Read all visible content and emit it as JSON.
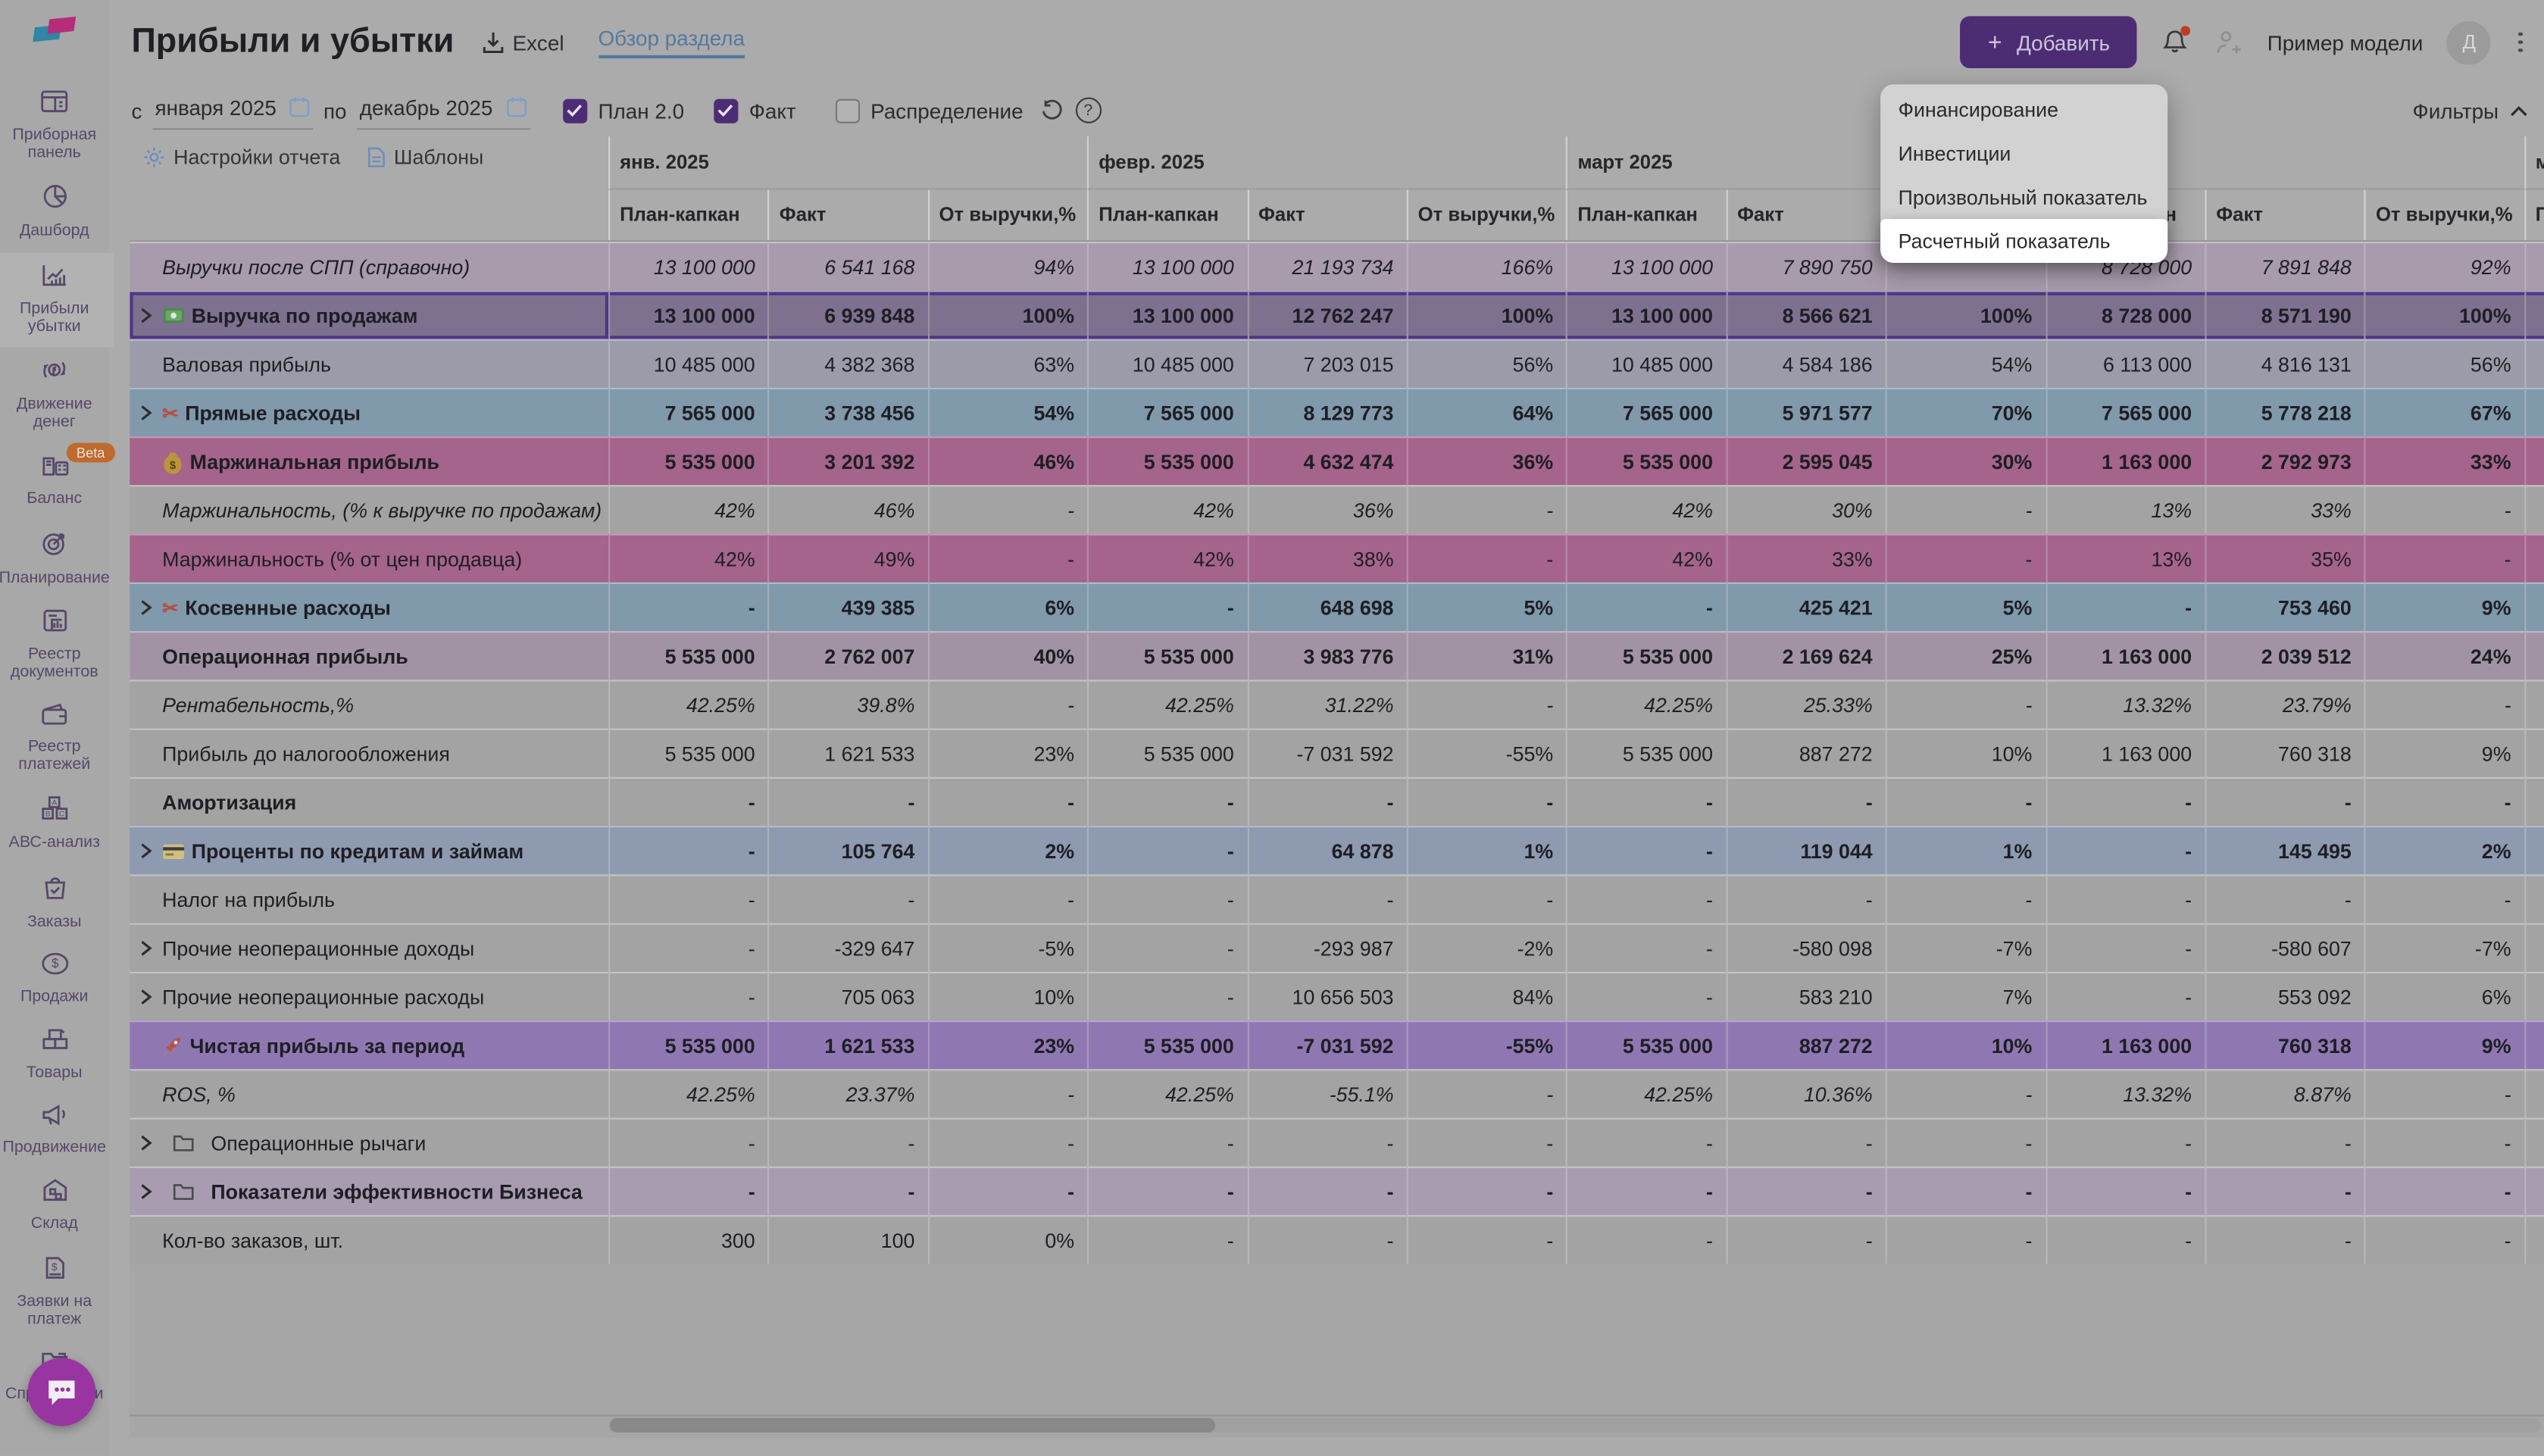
{
  "app": {
    "page_title": "Прибыли и убытки",
    "excel_export": "Excel",
    "section_overview_link": "Обзор раздела",
    "add_button": "Добавить",
    "model_name": "Пример модели",
    "avatar_letter": "Д"
  },
  "filters": {
    "from_label": "с",
    "from_value": "января 2025",
    "to_label": "по",
    "to_value": "декабрь 2025",
    "plan_checkbox": {
      "label": "План 2.0",
      "checked": true
    },
    "fact_checkbox": {
      "label": "Факт",
      "checked": true
    },
    "distribution_checkbox": {
      "label": "Распределение",
      "checked": false
    },
    "filters_toggle": "Фильтры"
  },
  "toolbar": {
    "report_settings": "Настройки отчета",
    "templates": "Шаблоны"
  },
  "sidebar": {
    "items": [
      {
        "label": "Приборная панель",
        "icon": "dashboard-panel",
        "active": false
      },
      {
        "label": "Дашборд",
        "icon": "pie-dashboard",
        "active": false
      },
      {
        "label": "Прибыли убытки",
        "icon": "profit-chart",
        "active": true
      },
      {
        "label": "Движение денег",
        "icon": "money-flow",
        "active": false
      },
      {
        "label": "Баланс",
        "icon": "balance",
        "active": false,
        "badge": "Beta"
      },
      {
        "label": "Планирование",
        "icon": "planning-target",
        "active": false
      },
      {
        "label": "Реестр документов",
        "icon": "documents-registry",
        "active": false
      },
      {
        "label": "Реестр платежей",
        "icon": "payments-registry",
        "active": false
      },
      {
        "label": "АВС-анализ",
        "icon": "abc-analysis",
        "active": false
      },
      {
        "label": "Заказы",
        "icon": "orders-bag",
        "active": false
      },
      {
        "label": "Продажи",
        "icon": "sales-dollar",
        "active": false
      },
      {
        "label": "Товары",
        "icon": "goods-boxes",
        "active": false
      },
      {
        "label": "Продвижение",
        "icon": "promotion-megaphone",
        "active": false
      },
      {
        "label": "Склад",
        "icon": "warehouse",
        "active": false
      },
      {
        "label": "Заявки на платеж",
        "icon": "payment-request",
        "active": false
      },
      {
        "label": "Справочники",
        "icon": "references-folder",
        "active": false
      }
    ]
  },
  "add_menu": {
    "items": [
      "Финансирование",
      "Инвестиции",
      "Произвольный показатель",
      "Расчетный показатель"
    ],
    "highlighted_index": 3
  },
  "table": {
    "months": [
      "янв. 2025",
      "февр. 2025",
      "март 2025",
      ""
    ],
    "value_columns": [
      "План-капкан",
      "Факт",
      "От выручки,%"
    ],
    "partial_next_month": {
      "month_label": "ма",
      "column_label": "Пл"
    },
    "rows": [
      {
        "label": "Выручки после СПП (справочно)",
        "icon": null,
        "chevron": false,
        "style": "ref",
        "italic": true,
        "bold": false,
        "selected": false,
        "cells": [
          "13 100 000",
          "6 541 168",
          "94%",
          "13 100 000",
          "21 193 734",
          "166%",
          "13 100 000",
          "7 890 750",
          "",
          "8 728 000",
          "7 891 848",
          "92%"
        ]
      },
      {
        "label": "Выручка по продажам",
        "icon": "banknote",
        "chevron": true,
        "style": "sel",
        "italic": false,
        "bold": true,
        "selected": true,
        "cells": [
          "13 100 000",
          "6 939 848",
          "100%",
          "13 100 000",
          "12 762 247",
          "100%",
          "13 100 000",
          "8 566 621",
          "100%",
          "8 728 000",
          "8 571 190",
          "100%"
        ]
      },
      {
        "label": "Валовая прибыль",
        "icon": null,
        "chevron": false,
        "style": "gross",
        "italic": false,
        "bold": false,
        "selected": false,
        "cells": [
          "10 485 000",
          "4 382 368",
          "63%",
          "10 485 000",
          "7 203 015",
          "56%",
          "10 485 000",
          "4 584 186",
          "54%",
          "6 113 000",
          "4 816 131",
          "56%"
        ]
      },
      {
        "label": "Прямые расходы",
        "icon": "scissors",
        "chevron": true,
        "style": "blue",
        "italic": false,
        "bold": true,
        "selected": false,
        "cells": [
          "7 565 000",
          "3 738 456",
          "54%",
          "7 565 000",
          "8 129 773",
          "64%",
          "7 565 000",
          "5 971 577",
          "70%",
          "7 565 000",
          "5 778 218",
          "67%"
        ]
      },
      {
        "label": "Маржинальная прибыль",
        "icon": "moneybag",
        "chevron": false,
        "style": "pink",
        "italic": false,
        "bold": true,
        "selected": false,
        "cells": [
          "5 535 000",
          "3 201 392",
          "46%",
          "5 535 000",
          "4 632 474",
          "36%",
          "5 535 000",
          "2 595 045",
          "30%",
          "1 163 000",
          "2 792 973",
          "33%"
        ]
      },
      {
        "label": "Маржинальность, (% к выручке по продажам)",
        "icon": null,
        "chevron": false,
        "style": "gray",
        "italic": true,
        "bold": false,
        "selected": false,
        "cells": [
          "42%",
          "46%",
          "-",
          "42%",
          "36%",
          "-",
          "42%",
          "30%",
          "-",
          "13%",
          "33%",
          "-"
        ]
      },
      {
        "label": "Маржинальность (% от цен продавца)",
        "icon": null,
        "chevron": false,
        "style": "pink",
        "italic": false,
        "bold": false,
        "selected": false,
        "cells": [
          "42%",
          "49%",
          "-",
          "42%",
          "38%",
          "-",
          "42%",
          "33%",
          "-",
          "13%",
          "35%",
          "-"
        ]
      },
      {
        "label": "Косвенные расходы",
        "icon": "scissors",
        "chevron": true,
        "style": "blue",
        "italic": false,
        "bold": true,
        "selected": false,
        "cells": [
          "-",
          "439 385",
          "6%",
          "-",
          "648 698",
          "5%",
          "-",
          "425 421",
          "5%",
          "-",
          "753 460",
          "9%"
        ]
      },
      {
        "label": "Операционная прибыль",
        "icon": null,
        "chevron": false,
        "style": "mauve",
        "italic": false,
        "bold": true,
        "selected": false,
        "cells": [
          "5 535 000",
          "2 762 007",
          "40%",
          "5 535 000",
          "3 983 776",
          "31%",
          "5 535 000",
          "2 169 624",
          "25%",
          "1 163 000",
          "2 039 512",
          "24%"
        ]
      },
      {
        "label": "Рентабельность,%",
        "icon": null,
        "chevron": false,
        "style": "gray",
        "italic": true,
        "bold": false,
        "selected": false,
        "cells": [
          "42.25%",
          "39.8%",
          "-",
          "42.25%",
          "31.22%",
          "-",
          "42.25%",
          "25.33%",
          "-",
          "13.32%",
          "23.79%",
          "-"
        ]
      },
      {
        "label": "Прибыль до налогообложения",
        "icon": null,
        "chevron": false,
        "style": "gray",
        "italic": false,
        "bold": false,
        "selected": false,
        "cells": [
          "5 535 000",
          "1 621 533",
          "23%",
          "5 535 000",
          "-7 031 592",
          "-55%",
          "5 535 000",
          "887 272",
          "10%",
          "1 163 000",
          "760 318",
          "9%"
        ]
      },
      {
        "label": "Амортизация",
        "icon": null,
        "chevron": false,
        "style": "gray",
        "italic": false,
        "bold": true,
        "selected": false,
        "cells": [
          "-",
          "-",
          "-",
          "-",
          "-",
          "-",
          "-",
          "-",
          "-",
          "-",
          "-",
          "-"
        ]
      },
      {
        "label": "Проценты по кредитам и займам",
        "icon": "credit-card",
        "chevron": true,
        "style": "bluegray",
        "italic": false,
        "bold": true,
        "selected": false,
        "cells": [
          "-",
          "105 764",
          "2%",
          "-",
          "64 878",
          "1%",
          "-",
          "119 044",
          "1%",
          "-",
          "145 495",
          "2%"
        ]
      },
      {
        "label": "Налог на прибыль",
        "icon": null,
        "chevron": false,
        "style": "gray",
        "italic": false,
        "bold": false,
        "selected": false,
        "cells": [
          "-",
          "-",
          "-",
          "-",
          "-",
          "-",
          "-",
          "-",
          "-",
          "-",
          "-",
          "-"
        ]
      },
      {
        "label": "Прочие неоперационные доходы",
        "icon": null,
        "chevron": true,
        "style": "gray",
        "italic": false,
        "bold": false,
        "selected": false,
        "cells": [
          "-",
          "-329 647",
          "-5%",
          "-",
          "-293 987",
          "-2%",
          "-",
          "-580 098",
          "-7%",
          "-",
          "-580 607",
          "-7%"
        ]
      },
      {
        "label": "Прочие неоперационные расходы",
        "icon": null,
        "chevron": true,
        "style": "gray",
        "italic": false,
        "bold": false,
        "selected": false,
        "cells": [
          "-",
          "705 063",
          "10%",
          "-",
          "10 656 503",
          "84%",
          "-",
          "583 210",
          "7%",
          "-",
          "553 092",
          "6%"
        ]
      },
      {
        "label": "Чистая прибыль за период",
        "icon": "rocket",
        "chevron": false,
        "style": "purple",
        "italic": false,
        "bold": true,
        "selected": false,
        "cells": [
          "5 535 000",
          "1 621 533",
          "23%",
          "5 535 000",
          "-7 031 592",
          "-55%",
          "5 535 000",
          "887 272",
          "10%",
          "1 163 000",
          "760 318",
          "9%"
        ]
      },
      {
        "label": "ROS, %",
        "icon": null,
        "chevron": false,
        "style": "gray",
        "italic": true,
        "bold": false,
        "selected": false,
        "cells": [
          "42.25%",
          "23.37%",
          "-",
          "42.25%",
          "-55.1%",
          "-",
          "42.25%",
          "10.36%",
          "-",
          "13.32%",
          "8.87%",
          "-"
        ]
      },
      {
        "label": "Операционные рычаги",
        "icon": "folder",
        "chevron": true,
        "style": "gray",
        "italic": false,
        "bold": false,
        "selected": false,
        "cells": [
          "-",
          "-",
          "-",
          "-",
          "-",
          "-",
          "-",
          "-",
          "-",
          "-",
          "-",
          "-"
        ]
      },
      {
        "label": "Показатели эффективности Бизнеса",
        "icon": "folder",
        "chevron": true,
        "style": "lightpurple",
        "italic": false,
        "bold": true,
        "selected": false,
        "cells": [
          "-",
          "-",
          "-",
          "-",
          "-",
          "-",
          "-",
          "-",
          "-",
          "-",
          "-",
          "-"
        ]
      },
      {
        "label": "Кол-во заказов, шт.",
        "icon": null,
        "chevron": false,
        "style": "gray",
        "italic": false,
        "bold": false,
        "selected": false,
        "cells": [
          "300",
          "100",
          "0%",
          "-",
          "-",
          "-",
          "-",
          "-",
          "-",
          "-",
          "-",
          "-"
        ]
      }
    ]
  }
}
